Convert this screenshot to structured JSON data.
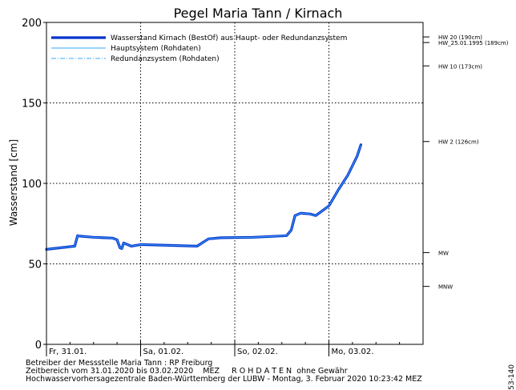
{
  "chart_data": {
    "type": "line",
    "title": "Pegel Maria Tann / Kirnach",
    "ylabel": "Wasserstand [cm]",
    "xlabel": "",
    "ylim": [
      0,
      200
    ],
    "yticks": [
      0,
      50,
      100,
      150,
      200
    ],
    "xlim": [
      0,
      4
    ],
    "day_labels": [
      "Fr, 31.01.",
      "Sa, 01.02.",
      "So, 02.02.",
      "Mo, 03.02."
    ],
    "grid": true,
    "legend_position": "top-left",
    "legend": [
      {
        "name": "Wasserstand Kirnach  (BestOf)  aus Haupt- oder Redundanzsystem",
        "color": "#0033cc",
        "style": "thick"
      },
      {
        "name": "Hauptsystem (Rohdaten)",
        "color": "#33aaff",
        "style": "solid"
      },
      {
        "name": "Redundanzsystem (Rohdaten)",
        "color": "#33aaff",
        "style": "dashdot"
      }
    ],
    "series": [
      {
        "name": "Wasserstand Kirnach  (BestOf)  aus Haupt- oder Redundanzsystem",
        "x": [
          0,
          0.15,
          0.3,
          0.33,
          0.36,
          0.5,
          0.7,
          0.75,
          0.78,
          0.8,
          0.82,
          0.86,
          0.9,
          1.0,
          1.3,
          1.6,
          1.72,
          1.85,
          2.2,
          2.55,
          2.6,
          2.64,
          2.7,
          2.8,
          2.86,
          2.93,
          3.0,
          3.05,
          3.1,
          3.2,
          3.3,
          3.34
        ],
        "values": [
          59,
          60,
          61,
          67.5,
          67.2,
          66.5,
          66,
          65,
          60,
          59.5,
          63,
          62,
          61,
          62,
          61.5,
          61,
          65.5,
          66.2,
          66.5,
          67.5,
          71,
          80,
          81.5,
          81,
          80,
          83,
          86,
          91,
          96,
          105,
          117,
          124
        ]
      }
    ],
    "thresholds": [
      {
        "label": "HW 20 (190cm)",
        "value": 190
      },
      {
        "label": "HW_25.01.1995 (189cm)",
        "value": 189
      },
      {
        "label": "HW 10 (173cm)",
        "value": 173
      },
      {
        "label": "HW 2 (126cm)",
        "value": 126
      },
      {
        "label": "MW",
        "value": 57
      },
      {
        "label": "MNW",
        "value": 36
      }
    ]
  },
  "footer": {
    "line1": "Betreiber der Messstelle Maria Tann : RP Freiburg",
    "line2": "Zeitbereich vom 31.01.2020 bis 03.02.2020    MEZ     R O H D A T E N  ohne Gewähr",
    "line3": "Hochwasservorhersagezentrale Baden-Württemberg der LUBW - Montag, 3. Februar 2020 10:23:42 MEZ",
    "code": "53-140"
  }
}
